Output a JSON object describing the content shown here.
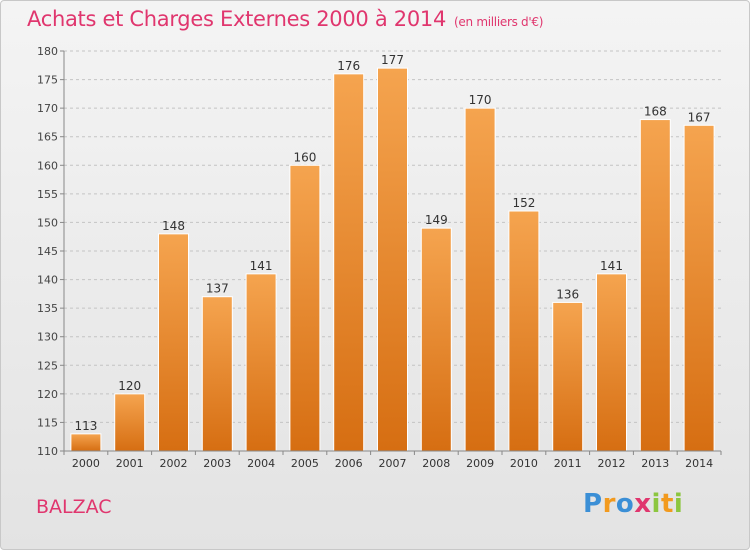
{
  "header": {
    "title": "Achats et Charges Externes 2000 à 2014",
    "unit": "(en milliers d'€)"
  },
  "footer": {
    "town": "BALZAC",
    "logo_letters": [
      "P",
      "r",
      "o",
      "x",
      "i",
      "t",
      "i"
    ],
    "logo_colors": [
      "#3b8fd6",
      "#f29a1e",
      "#3b8fd6",
      "#e0366e",
      "#8cc63f",
      "#f29a1e",
      "#8cc63f"
    ]
  },
  "chart_data": {
    "type": "bar",
    "categories": [
      "2000",
      "2001",
      "2002",
      "2003",
      "2004",
      "2005",
      "2006",
      "2007",
      "2008",
      "2009",
      "2010",
      "2011",
      "2012",
      "2013",
      "2014"
    ],
    "values": [
      113,
      120,
      148,
      137,
      141,
      160,
      176,
      177,
      149,
      170,
      152,
      136,
      141,
      168,
      167
    ],
    "ylim": [
      110,
      180
    ],
    "yticks": [
      110,
      115,
      120,
      125,
      130,
      135,
      140,
      145,
      150,
      155,
      160,
      165,
      170,
      175,
      180
    ],
    "grid": true,
    "bar_color_top": "#f5a44f",
    "bar_color_bottom": "#d66e12"
  }
}
